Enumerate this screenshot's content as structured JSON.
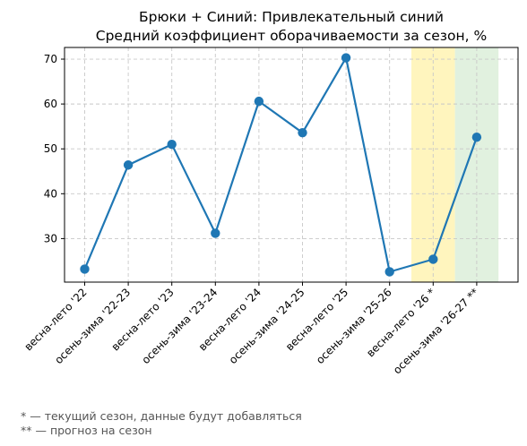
{
  "chart_data": {
    "type": "line",
    "title_lines": [
      "Брюки + Синий: Привлекательный синий",
      "Средний коэффициент оборачиваемости за сезон, %"
    ],
    "xlabel": "",
    "ylabel": "",
    "categories": [
      "весна-лето '22",
      "осень-зима '22-23",
      "весна-лето '23",
      "осень-зима '23-24",
      "весна-лето '24",
      "осень-зима '24-25",
      "весна-лето '25",
      "осень-зима '25-26",
      "весна-лето '26 *",
      "осень-зима '26-27 **"
    ],
    "series": [
      {
        "values": [
          23.2,
          46.4,
          51.0,
          31.2,
          60.6,
          53.6,
          70.3,
          22.6,
          25.4,
          52.6
        ],
        "color": "#1f77b4"
      }
    ],
    "ylim": [
      20.3,
      72.6
    ],
    "yticks": [
      30,
      40,
      50,
      60,
      70
    ],
    "grid": true,
    "highlight_bands": [
      {
        "category": "весна-лето '26 *",
        "color": "#fff3b3"
      },
      {
        "category": "осень-зима '26-27 **",
        "color": "#dcefd9"
      }
    ],
    "footnotes": [
      "* — текущий сезон, данные будут добавляться",
      "** — прогноз на сезон"
    ]
  }
}
